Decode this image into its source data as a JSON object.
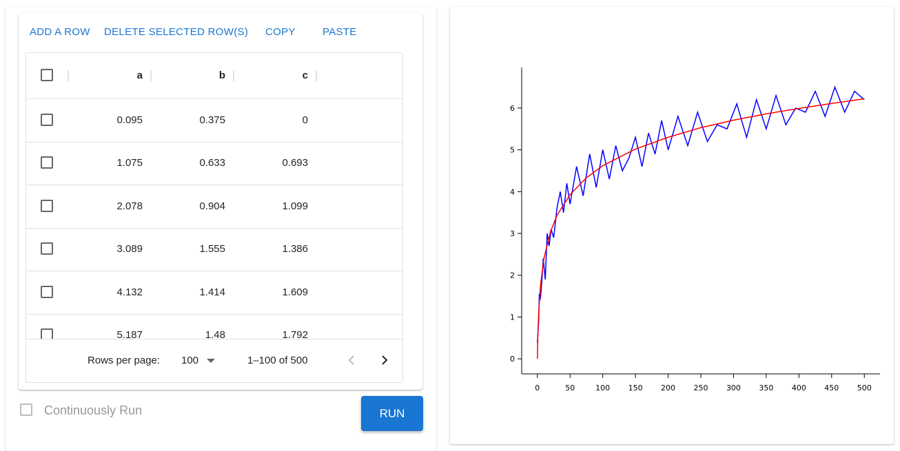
{
  "toolbar": {
    "buttons": [
      "ADD A ROW",
      "DELETE SELECTED ROW(S)",
      "COPY",
      "PASTE"
    ]
  },
  "table": {
    "columns": [
      "a",
      "b",
      "c"
    ],
    "rows": [
      [
        "0.095",
        "0.375",
        "0"
      ],
      [
        "1.075",
        "0.633",
        "0.693"
      ],
      [
        "2.078",
        "0.904",
        "1.099"
      ],
      [
        "3.089",
        "1.555",
        "1.386"
      ],
      [
        "4.132",
        "1.414",
        "1.609"
      ],
      [
        "5.187",
        "1.48",
        "1.792"
      ]
    ],
    "footer": {
      "rows_per_page_label": "Rows per page:",
      "rows_per_page": "100",
      "range": "1–100 of 500"
    }
  },
  "controls": {
    "checkbox_label": "Continuously Run",
    "run_button": "RUN"
  },
  "chart_data": {
    "type": "line",
    "xlim": [
      -24,
      524
    ],
    "ylim": [
      -0.36,
      6.97
    ],
    "xticks": [
      0,
      50,
      100,
      150,
      200,
      250,
      300,
      350,
      400,
      450,
      500
    ],
    "yticks": [
      0,
      1,
      2,
      3,
      4,
      5,
      6
    ],
    "series": [
      {
        "color": "#0000ff",
        "x": [
          0,
          1,
          2,
          3,
          4,
          5,
          7,
          9,
          12,
          15,
          18,
          21,
          25,
          30,
          35,
          40,
          45,
          50,
          60,
          70,
          80,
          90,
          100,
          110,
          120,
          130,
          140,
          150,
          160,
          170,
          180,
          190,
          200,
          215,
          230,
          245,
          260,
          275,
          290,
          305,
          320,
          335,
          350,
          365,
          380,
          395,
          410,
          425,
          440,
          455,
          470,
          485,
          500
        ],
        "values": [
          0.375,
          0.633,
          0.904,
          1.555,
          1.414,
          1.48,
          1.9,
          2.4,
          1.9,
          3.0,
          2.7,
          3.1,
          2.9,
          3.6,
          4.0,
          3.5,
          4.2,
          3.7,
          4.6,
          3.9,
          4.9,
          4.1,
          5.0,
          4.3,
          5.1,
          4.5,
          4.8,
          5.3,
          4.6,
          5.4,
          4.9,
          5.7,
          5.0,
          5.8,
          5.1,
          5.9,
          5.2,
          5.6,
          5.5,
          6.1,
          5.3,
          6.2,
          5.5,
          6.3,
          5.6,
          6.0,
          5.9,
          6.4,
          5.8,
          6.5,
          5.9,
          6.4,
          6.2
        ]
      },
      {
        "color": "#ff0000",
        "x": [
          0,
          1,
          2,
          5,
          10,
          20,
          30,
          50,
          75,
          100,
          150,
          200,
          250,
          300,
          350,
          400,
          450,
          500
        ],
        "values": [
          0,
          0.693,
          1.099,
          1.79,
          2.4,
          3.04,
          3.43,
          3.93,
          4.33,
          4.62,
          5.02,
          5.3,
          5.53,
          5.71,
          5.86,
          5.99,
          6.11,
          6.22
        ]
      }
    ]
  }
}
